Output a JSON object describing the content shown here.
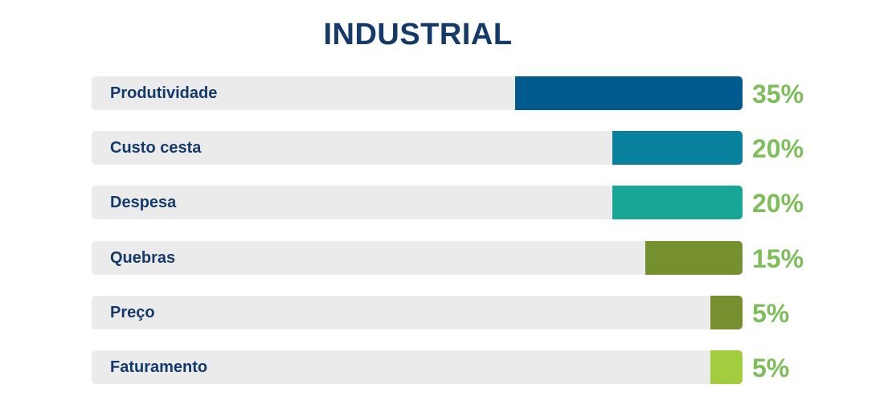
{
  "chart_data": {
    "type": "bar",
    "orientation": "horizontal",
    "title": "INDUSTRIAL",
    "xlim": [
      0,
      100
    ],
    "grid": false,
    "categories": [
      "Produtividade",
      "Custo cesta",
      "Despesa",
      "Quebras",
      "Preço",
      "Faturamento"
    ],
    "values": [
      35,
      20,
      20,
      15,
      5,
      5
    ],
    "value_labels": [
      "35%",
      "20%",
      "20%",
      "15%",
      "5%",
      "5%"
    ],
    "colors": [
      "#005a8e",
      "#0a819c",
      "#17a595",
      "#76902f",
      "#76902f",
      "#a3cc3e"
    ],
    "label_color": "#143a6b",
    "value_label_color": "#7dbe5a",
    "track_color": "#ebebeb"
  }
}
